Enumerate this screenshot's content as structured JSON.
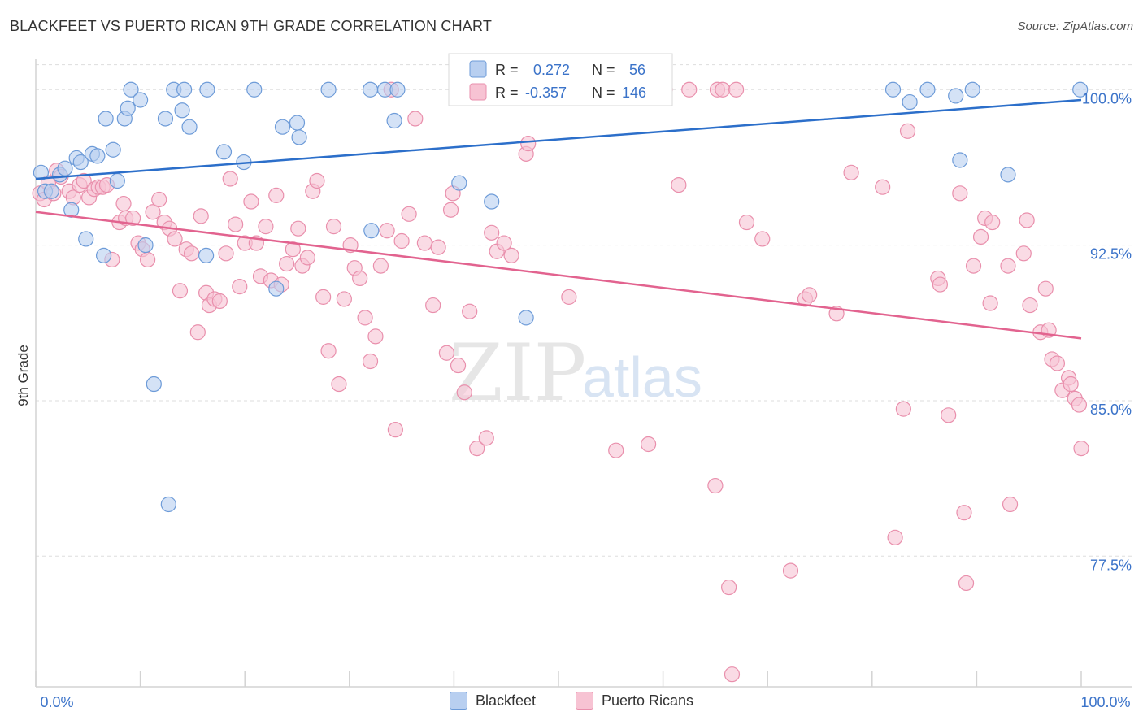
{
  "title": "BLACKFEET VS PUERTO RICAN 9TH GRADE CORRELATION CHART",
  "source": "Source: ZipAtlas.com",
  "watermark": {
    "zip": "ZIP",
    "atlas": "atlas"
  },
  "colors": {
    "blackfeet_fill": "#b8cff0",
    "blackfeet_stroke": "#6d9bd8",
    "blackfeet_line": "#2c6fca",
    "pr_fill": "#f7c3d3",
    "pr_stroke": "#e98fac",
    "pr_line": "#e2638f",
    "axis_text": "#3b73c9",
    "grid": "#dddddd"
  },
  "legend_stats": [
    {
      "r_label": "R =",
      "r_value": "0.272",
      "n_label": "N =",
      "n_value": "56"
    },
    {
      "r_label": "R =",
      "r_value": "-0.357",
      "n_label": "N =",
      "n_value": "146"
    }
  ],
  "chart_data": {
    "type": "scatter",
    "title": "BLACKFEET VS PUERTO RICAN 9TH GRADE CORRELATION CHART",
    "xlabel": "",
    "ylabel": "9th Grade",
    "xlim": [
      0,
      100
    ],
    "ylim": [
      71.2,
      101.5
    ],
    "x_tick_labels": [
      "0.0%",
      "100.0%"
    ],
    "y_ticks": [
      77.5,
      85.0,
      92.5,
      100.0
    ],
    "y_tick_labels": [
      "77.5%",
      "85.0%",
      "92.5%",
      "100.0%"
    ],
    "grid": true,
    "legend_position": "bottom",
    "series": [
      {
        "name": "Blackfeet",
        "trend": {
          "x": [
            0,
            100
          ],
          "y": [
            95.7,
            99.5
          ]
        },
        "points": [
          [
            0.5,
            96
          ],
          [
            0.9,
            95.1
          ],
          [
            1.5,
            95.1
          ],
          [
            2.3,
            95.9
          ],
          [
            2.8,
            96.2
          ],
          [
            3.4,
            94.2
          ],
          [
            3.9,
            96.7
          ],
          [
            4.3,
            96.5
          ],
          [
            4.8,
            92.8
          ],
          [
            5.4,
            96.9
          ],
          [
            5.9,
            96.8
          ],
          [
            6.5,
            92.0
          ],
          [
            6.7,
            98.6
          ],
          [
            7.4,
            97.1
          ],
          [
            7.8,
            95.6
          ],
          [
            8.5,
            98.6
          ],
          [
            8.8,
            99.1
          ],
          [
            9.1,
            100
          ],
          [
            10.0,
            99.5
          ],
          [
            10.5,
            92.5
          ],
          [
            11.3,
            85.8
          ],
          [
            12.4,
            98.6
          ],
          [
            12.7,
            80.0
          ],
          [
            13.2,
            100
          ],
          [
            14.0,
            99.0
          ],
          [
            14.2,
            100
          ],
          [
            14.7,
            98.2
          ],
          [
            16.3,
            92.0
          ],
          [
            16.4,
            100
          ],
          [
            18.0,
            97.0
          ],
          [
            19.9,
            96.5
          ],
          [
            20.9,
            100
          ],
          [
            23.0,
            90.4
          ],
          [
            23.6,
            98.2
          ],
          [
            25.0,
            98.4
          ],
          [
            25.2,
            97.7
          ],
          [
            28.0,
            100
          ],
          [
            32.0,
            100
          ],
          [
            32.1,
            93.2
          ],
          [
            33.4,
            100
          ],
          [
            34.3,
            98.5
          ],
          [
            34.6,
            100
          ],
          [
            40.5,
            95.5
          ],
          [
            43.6,
            94.6
          ],
          [
            46.9,
            89.0
          ],
          [
            47.0,
            100
          ],
          [
            47.9,
            100
          ],
          [
            48.3,
            100
          ],
          [
            82.0,
            100
          ],
          [
            83.6,
            99.4
          ],
          [
            85.3,
            100
          ],
          [
            88.0,
            99.7
          ],
          [
            88.4,
            96.6
          ],
          [
            89.6,
            100
          ],
          [
            93.0,
            95.9
          ],
          [
            99.9,
            100
          ]
        ]
      },
      {
        "name": "Puerto Ricans",
        "trend": {
          "x": [
            0,
            100
          ],
          "y": [
            94.1,
            88.0
          ]
        },
        "points": [
          [
            0.4,
            95.0
          ],
          [
            0.8,
            94.7
          ],
          [
            1.2,
            95.5
          ],
          [
            1.7,
            95.0
          ],
          [
            2.0,
            96.1
          ],
          [
            2.4,
            95.8
          ],
          [
            3.2,
            95.1
          ],
          [
            3.6,
            94.8
          ],
          [
            4.2,
            95.4
          ],
          [
            4.6,
            95.6
          ],
          [
            5.1,
            94.8
          ],
          [
            5.6,
            95.2
          ],
          [
            6.0,
            95.3
          ],
          [
            6.4,
            95.3
          ],
          [
            6.8,
            95.4
          ],
          [
            7.3,
            91.8
          ],
          [
            8.0,
            93.6
          ],
          [
            8.4,
            94.5
          ],
          [
            8.6,
            93.8
          ],
          [
            9.3,
            93.8
          ],
          [
            9.8,
            92.6
          ],
          [
            10.2,
            92.3
          ],
          [
            10.7,
            91.8
          ],
          [
            11.2,
            94.1
          ],
          [
            11.8,
            94.7
          ],
          [
            12.3,
            93.6
          ],
          [
            12.8,
            93.3
          ],
          [
            13.3,
            92.8
          ],
          [
            13.8,
            90.3
          ],
          [
            14.4,
            92.3
          ],
          [
            14.9,
            92.1
          ],
          [
            15.5,
            88.3
          ],
          [
            15.8,
            93.9
          ],
          [
            16.3,
            90.2
          ],
          [
            16.6,
            89.6
          ],
          [
            17.1,
            89.9
          ],
          [
            17.6,
            89.8
          ],
          [
            18.2,
            92.1
          ],
          [
            18.6,
            95.7
          ],
          [
            19.1,
            93.5
          ],
          [
            19.5,
            90.5
          ],
          [
            20.0,
            92.6
          ],
          [
            20.6,
            94.6
          ],
          [
            21.1,
            92.6
          ],
          [
            21.5,
            91.0
          ],
          [
            22.0,
            93.4
          ],
          [
            22.5,
            90.8
          ],
          [
            23.0,
            94.9
          ],
          [
            23.5,
            90.6
          ],
          [
            24.0,
            91.6
          ],
          [
            24.6,
            92.3
          ],
          [
            25.1,
            93.3
          ],
          [
            25.5,
            91.5
          ],
          [
            26.0,
            91.9
          ],
          [
            26.5,
            95.1
          ],
          [
            26.9,
            95.6
          ],
          [
            27.5,
            90.0
          ],
          [
            28.0,
            87.4
          ],
          [
            28.5,
            93.4
          ],
          [
            29.0,
            85.8
          ],
          [
            29.5,
            89.9
          ],
          [
            30.1,
            92.5
          ],
          [
            30.5,
            91.4
          ],
          [
            31.0,
            90.9
          ],
          [
            31.5,
            89.0
          ],
          [
            32.0,
            86.9
          ],
          [
            32.5,
            88.1
          ],
          [
            33.0,
            91.5
          ],
          [
            33.6,
            93.2
          ],
          [
            34.0,
            100
          ],
          [
            34.4,
            83.6
          ],
          [
            35.0,
            92.7
          ],
          [
            35.7,
            94.0
          ],
          [
            36.3,
            98.6
          ],
          [
            37.2,
            92.6
          ],
          [
            38.0,
            89.6
          ],
          [
            38.5,
            92.4
          ],
          [
            39.3,
            87.3
          ],
          [
            39.7,
            94.2
          ],
          [
            39.9,
            95.0
          ],
          [
            40.4,
            86.7
          ],
          [
            41.0,
            85.4
          ],
          [
            41.5,
            89.3
          ],
          [
            42.2,
            82.7
          ],
          [
            43.1,
            83.2
          ],
          [
            43.6,
            93.1
          ],
          [
            44.1,
            92.2
          ],
          [
            44.8,
            92.6
          ],
          [
            45.5,
            92.0
          ],
          [
            46.9,
            96.9
          ],
          [
            47.1,
            97.4
          ],
          [
            50.0,
            100
          ],
          [
            51.0,
            90.0
          ],
          [
            51.1,
            100
          ],
          [
            53.7,
            100
          ],
          [
            55.5,
            82.6
          ],
          [
            58.6,
            82.9
          ],
          [
            59.0,
            100
          ],
          [
            59.8,
            100
          ],
          [
            60.2,
            100
          ],
          [
            61.5,
            95.4
          ],
          [
            62.5,
            100
          ],
          [
            65.0,
            80.9
          ],
          [
            65.2,
            100
          ],
          [
            65.7,
            100
          ],
          [
            66.3,
            76.0
          ],
          [
            66.6,
            71.8
          ],
          [
            67.0,
            100
          ],
          [
            68.0,
            93.6
          ],
          [
            69.5,
            92.8
          ],
          [
            72.2,
            76.8
          ],
          [
            73.6,
            89.9
          ],
          [
            74.0,
            90.1
          ],
          [
            76.6,
            89.2
          ],
          [
            78.0,
            96.0
          ],
          [
            81.0,
            95.3
          ],
          [
            82.2,
            78.4
          ],
          [
            83.0,
            84.6
          ],
          [
            83.4,
            98.0
          ],
          [
            86.3,
            90.9
          ],
          [
            86.5,
            90.6
          ],
          [
            87.3,
            84.3
          ],
          [
            88.4,
            95.0
          ],
          [
            88.8,
            79.6
          ],
          [
            89.0,
            76.2
          ],
          [
            89.7,
            91.5
          ],
          [
            90.4,
            92.9
          ],
          [
            90.8,
            93.8
          ],
          [
            91.3,
            89.7
          ],
          [
            91.5,
            93.6
          ],
          [
            93.0,
            91.5
          ],
          [
            93.2,
            80.0
          ],
          [
            94.5,
            92.1
          ],
          [
            94.8,
            93.7
          ],
          [
            95.1,
            89.6
          ],
          [
            96.1,
            88.3
          ],
          [
            96.6,
            90.4
          ],
          [
            96.9,
            88.4
          ],
          [
            97.2,
            87.0
          ],
          [
            97.7,
            86.8
          ],
          [
            98.2,
            85.5
          ],
          [
            98.8,
            86.1
          ],
          [
            99.0,
            85.8
          ],
          [
            99.4,
            85.1
          ],
          [
            99.8,
            84.8
          ],
          [
            100.0,
            82.7
          ]
        ]
      }
    ]
  }
}
